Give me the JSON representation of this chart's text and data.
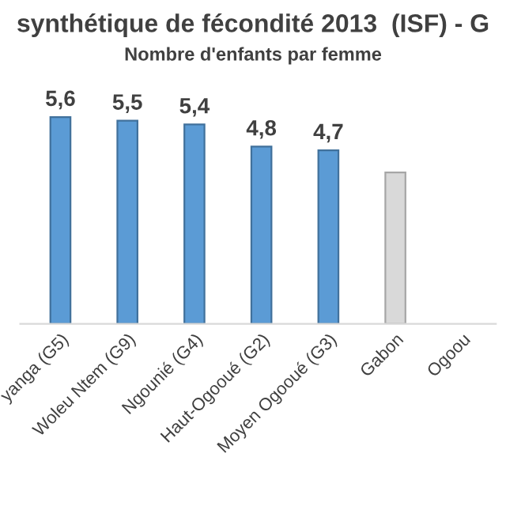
{
  "chart_data": {
    "type": "bar",
    "title": "synthétique de fécondité 2013  (ISF) - G",
    "subtitle": "Nombre d'enfants par femme",
    "categories": [
      "yanga (G5)",
      "Woleu Ntem (G9)",
      "Ngounié (G4)",
      "Haut-Ogooué (G2)",
      "Moyen Ogooué (G3)",
      "Gabon",
      "Ogoou"
    ],
    "values": [
      5.6,
      5.5,
      5.4,
      4.8,
      4.7,
      4.1,
      null
    ],
    "colors": [
      "#5b9bd5",
      "#5b9bd5",
      "#5b9bd5",
      "#5b9bd5",
      "#5b9bd5",
      "#d9d9d9",
      "#d9d9d9"
    ],
    "value_labels": [
      "5,6",
      "5,5",
      "5,4",
      "4,8",
      "4,7",
      null,
      null
    ],
    "grid": false
  }
}
